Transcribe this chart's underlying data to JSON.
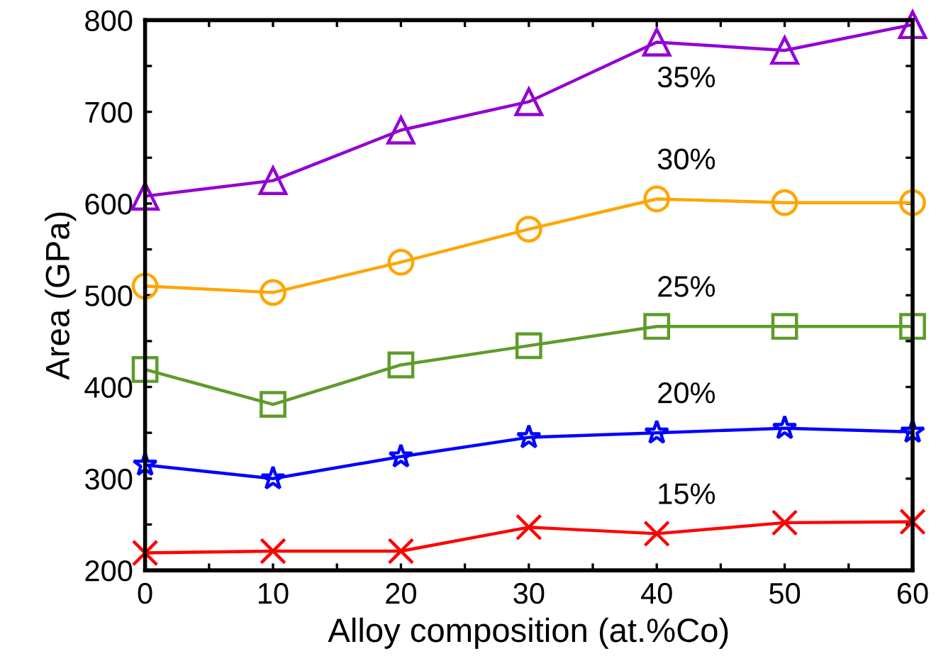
{
  "chart_data": {
    "type": "line",
    "xlabel": "Alloy composition (at.%Co)",
    "ylabel": "Area (GPa)",
    "x": [
      0,
      10,
      20,
      30,
      40,
      50,
      60
    ],
    "series": [
      {
        "name": "35%",
        "color": "#9400d3",
        "marker": "triangle",
        "values": [
          608,
          625,
          680,
          711,
          776,
          767,
          795
        ]
      },
      {
        "name": "30%",
        "color": "#ffa500",
        "marker": "circle",
        "values": [
          510,
          503,
          536,
          572,
          605,
          601,
          601
        ]
      },
      {
        "name": "25%",
        "color": "#5e9c2a",
        "marker": "square",
        "values": [
          419,
          381,
          424,
          445,
          466,
          466,
          466
        ]
      },
      {
        "name": "20%",
        "color": "#0000ff",
        "marker": "star",
        "values": [
          315,
          300,
          324,
          345,
          350,
          355,
          351
        ]
      },
      {
        "name": "15%",
        "color": "#ff0000",
        "marker": "cross",
        "values": [
          219,
          221,
          221,
          247,
          240,
          252,
          253
        ]
      }
    ],
    "xlim": [
      0,
      60
    ],
    "ylim": [
      200,
      800
    ],
    "xticks": [
      0,
      {
        "value": 5,
        "label": null
      },
      10,
      {
        "value": 15,
        "label": null
      },
      20,
      {
        "value": 25,
        "label": null
      },
      30,
      {
        "value": 35,
        "label": null
      },
      40,
      {
        "value": 45,
        "label": null
      },
      50,
      {
        "value": 55,
        "label": null
      },
      60
    ],
    "yticks": [
      200,
      {
        "value": 250,
        "label": null
      },
      300,
      {
        "value": 350,
        "label": null
      },
      400,
      {
        "value": 450,
        "label": null
      },
      500,
      {
        "value": 550,
        "label": null
      },
      600,
      {
        "value": 650,
        "label": null
      },
      700,
      {
        "value": 750,
        "label": null
      },
      800
    ],
    "grid": false,
    "legend": false,
    "line_style": "solid"
  }
}
